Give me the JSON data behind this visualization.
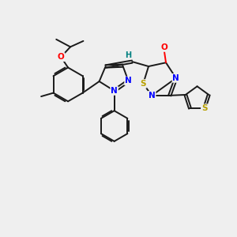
{
  "background_color": "#efefef",
  "bond_color": "#1a1a1a",
  "atom_colors": {
    "N": "#0000ff",
    "O": "#ff0000",
    "S": "#b8a000",
    "H": "#008080",
    "C": "#1a1a1a"
  },
  "figsize": [
    3.0,
    3.0
  ],
  "dpi": 100
}
